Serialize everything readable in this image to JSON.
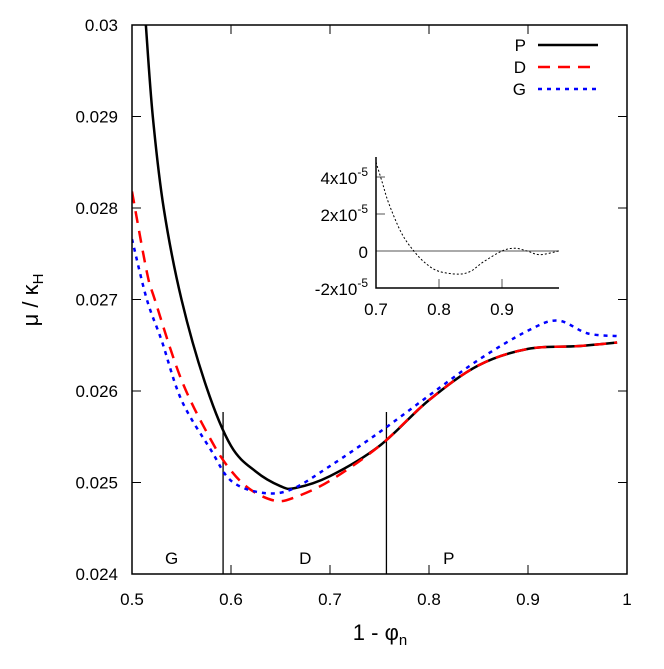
{
  "chart_data": [
    {
      "type": "line",
      "xlabel": "1 - φn",
      "ylabel": "μ / κH",
      "xlim": [
        0.5,
        1.0
      ],
      "ylim": [
        0.024,
        0.03
      ],
      "xticks": [
        "0.5",
        "0.6",
        "0.7",
        "0.8",
        "0.9",
        "1"
      ],
      "xtick_values": [
        0.5,
        0.6,
        0.7,
        0.8,
        0.9,
        1.0
      ],
      "yticks": [
        "0.024",
        "0.025",
        "0.026",
        "0.027",
        "0.028",
        "0.029",
        "0.03"
      ],
      "ytick_values": [
        0.024,
        0.025,
        0.026,
        0.027,
        0.028,
        0.029,
        0.03
      ],
      "grid": false,
      "legend_position": "top-right",
      "series": [
        {
          "name": "P",
          "color": "#000000",
          "style": "solid",
          "x": [
            0.514,
            0.521,
            0.532,
            0.55,
            0.575,
            0.6,
            0.625,
            0.65,
            0.665,
            0.7,
            0.75,
            0.8,
            0.85,
            0.9,
            0.95,
            0.99
          ],
          "y": [
            0.03,
            0.029,
            0.028,
            0.027,
            0.02605,
            0.0254,
            0.02512,
            0.02496,
            0.02494,
            0.02507,
            0.0254,
            0.0259,
            0.02628,
            0.02646,
            0.02649,
            0.02653
          ]
        },
        {
          "name": "D",
          "color": "#ff0000",
          "style": "dashed",
          "x": [
            0.5,
            0.515,
            0.523,
            0.55,
            0.58,
            0.6,
            0.62,
            0.645,
            0.665,
            0.7,
            0.75,
            0.8,
            0.85,
            0.9,
            0.95,
            0.99
          ],
          "y": [
            0.02818,
            0.0273,
            0.027,
            0.02612,
            0.02546,
            0.02513,
            0.02492,
            0.0248,
            0.02484,
            0.02502,
            0.0254,
            0.0259,
            0.02628,
            0.02646,
            0.02649,
            0.02653
          ]
        },
        {
          "name": "G",
          "color": "#0000ff",
          "style": "dotted",
          "x": [
            0.5,
            0.515,
            0.53,
            0.55,
            0.58,
            0.6,
            0.63,
            0.66,
            0.7,
            0.75,
            0.8,
            0.85,
            0.9,
            0.93,
            0.96,
            0.99
          ],
          "y": [
            0.02766,
            0.027,
            0.02655,
            0.0259,
            0.02535,
            0.02502,
            0.02489,
            0.02492,
            0.02518,
            0.02555,
            0.02595,
            0.02634,
            0.02666,
            0.02677,
            0.02663,
            0.0266
          ]
        }
      ],
      "vertical_lines": [
        0.592,
        0.757
      ],
      "vertical_lines_top": 0.02577,
      "region_labels": [
        {
          "text": "G",
          "x": 0.54
        },
        {
          "text": "D",
          "x": 0.675
        },
        {
          "text": "P",
          "x": 0.82
        }
      ]
    },
    {
      "type": "line",
      "xlim": [
        0.7,
        0.99
      ],
      "ylim": [
        -2e-05,
        4.8e-05
      ],
      "xticks": [
        "0.7",
        "0.8",
        "0.9"
      ],
      "xtick_values": [
        0.7,
        0.8,
        0.9
      ],
      "yticks": [
        "-2x10-5",
        "0",
        "2x10-5",
        "4x10-5"
      ],
      "ytick_labels": [
        {
          "m": "-2x10",
          "e": "-5"
        },
        {
          "m": "0",
          "e": ""
        },
        {
          "m": "2x10",
          "e": "-5"
        },
        {
          "m": "4x10",
          "e": "-5"
        }
      ],
      "ytick_values": [
        -2e-05,
        0,
        2e-05,
        4e-05
      ],
      "zero_line": true,
      "series": [
        {
          "color": "#000000",
          "style": "dotted",
          "x": [
            0.7,
            0.71,
            0.72,
            0.74,
            0.76,
            0.78,
            0.8,
            0.83,
            0.85,
            0.87,
            0.9,
            0.92,
            0.94,
            0.96,
            0.99
          ],
          "y": [
            4.8e-05,
            3.7e-05,
            2.6e-05,
            1e-05,
            0,
            -7e-06,
            -1.1e-05,
            -1.25e-05,
            -1.1e-05,
            -6e-06,
            0,
            1.5e-06,
            0,
            -2e-06,
            0
          ]
        }
      ]
    }
  ]
}
